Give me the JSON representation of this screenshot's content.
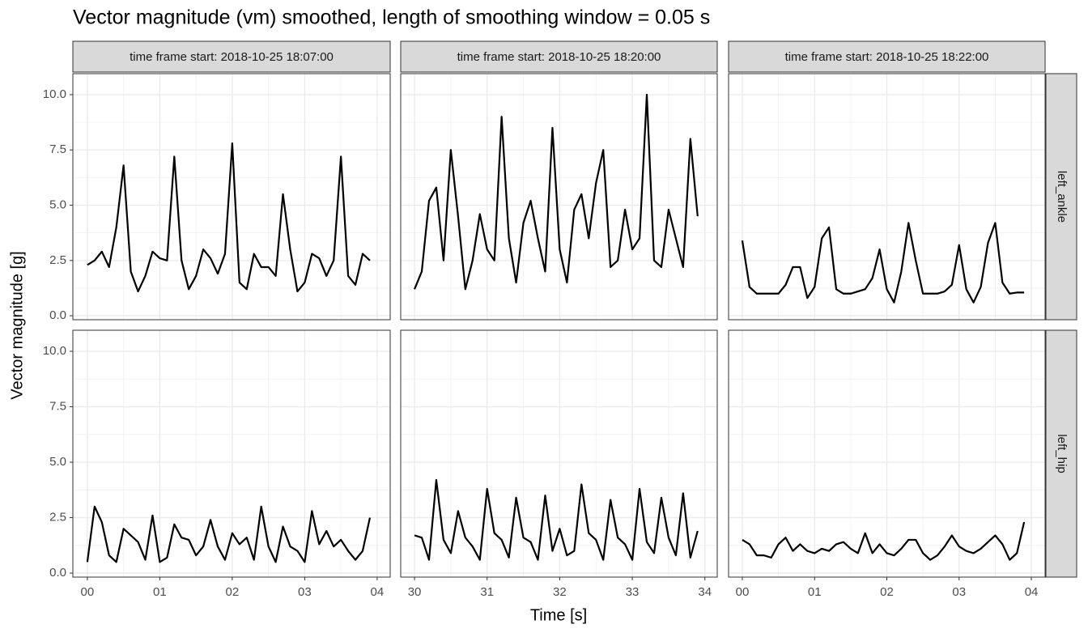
{
  "chart_data": {
    "type": "line",
    "title": "Vector magnitude (vm) smoothed, length of smoothing window = 0.05 s",
    "x_label": "Time [s]",
    "y_label": "Vector magnitude [g]",
    "color": "#000000",
    "grid": true,
    "ylim": [
      -0.18,
      10.95
    ],
    "yticks": [
      {
        "value": 0,
        "label": "0.0"
      },
      2.5,
      {
        "value": 5,
        "label": "5.0"
      },
      7.5,
      {
        "value": 10,
        "label": "10.0"
      }
    ],
    "columns": [
      {
        "label": "time frame start: 2018-10-25 18:07:00",
        "xlim": [
          -0.2,
          4.18
        ],
        "xticks": [
          {
            "value": 0,
            "label": "00"
          },
          {
            "value": 1,
            "label": "01"
          },
          {
            "value": 2,
            "label": "02"
          },
          {
            "value": 3,
            "label": "03"
          },
          {
            "value": 4,
            "label": "04"
          }
        ],
        "x": [
          0,
          0.1,
          0.2,
          0.3,
          0.4,
          0.5,
          0.6,
          0.7,
          0.8,
          0.9,
          1,
          1.1,
          1.2,
          1.3,
          1.4,
          1.5,
          1.6,
          1.7,
          1.8,
          1.9,
          2,
          2.1,
          2.2,
          2.3,
          2.4,
          2.5,
          2.6,
          2.7,
          2.8,
          2.9,
          3,
          3.1,
          3.2,
          3.3,
          3.4,
          3.5,
          3.6,
          3.7,
          3.8,
          3.9
        ]
      },
      {
        "label": "time frame start: 2018-10-25 18:20:00",
        "xlim": [
          29.81,
          34.17
        ],
        "xticks": [
          30,
          31,
          32,
          33,
          34
        ],
        "x": [
          30,
          30.1,
          30.2,
          30.3,
          30.4,
          30.5,
          30.6,
          30.7,
          30.8,
          30.9,
          31,
          31.1,
          31.2,
          31.3,
          31.4,
          31.5,
          31.6,
          31.7,
          31.8,
          31.9,
          32,
          32.1,
          32.2,
          32.3,
          32.4,
          32.5,
          32.6,
          32.7,
          32.8,
          32.9,
          33,
          33.1,
          33.2,
          33.3,
          33.4,
          33.5,
          33.6,
          33.7,
          33.8,
          33.9
        ]
      },
      {
        "label": "time frame start: 2018-10-25 18:22:00",
        "xlim": [
          -0.19,
          4.19
        ],
        "xticks": [
          {
            "value": 0,
            "label": "00"
          },
          {
            "value": 1,
            "label": "01"
          },
          {
            "value": 2,
            "label": "02"
          },
          {
            "value": 3,
            "label": "03"
          },
          {
            "value": 4,
            "label": "04"
          }
        ],
        "x": [
          0,
          0.1,
          0.2,
          0.3,
          0.4,
          0.5,
          0.6,
          0.7,
          0.8,
          0.9,
          1,
          1.1,
          1.2,
          1.3,
          1.4,
          1.5,
          1.6,
          1.7,
          1.8,
          1.9,
          2,
          2.1,
          2.2,
          2.3,
          2.4,
          2.5,
          2.6,
          2.7,
          2.8,
          2.9,
          3,
          3.1,
          3.2,
          3.3,
          3.4,
          3.5,
          3.6,
          3.7,
          3.8,
          3.9
        ]
      }
    ],
    "rows": [
      {
        "label": "left_ankle",
        "values": [
          [
            2.3,
            2.5,
            2.9,
            2.2,
            4.0,
            6.8,
            2.0,
            1.1,
            1.8,
            2.9,
            2.6,
            2.5,
            7.2,
            2.5,
            1.2,
            1.8,
            3.0,
            2.6,
            1.9,
            2.8,
            7.8,
            1.5,
            1.2,
            2.8,
            2.2,
            2.2,
            1.8,
            5.5,
            3.0,
            1.1,
            1.5,
            2.8,
            2.6,
            1.8,
            2.5,
            7.2,
            1.8,
            1.4,
            2.8,
            2.5
          ],
          [
            1.2,
            2.0,
            5.2,
            5.8,
            2.5,
            7.5,
            4.5,
            1.2,
            2.5,
            4.6,
            3.0,
            2.5,
            9.0,
            3.5,
            1.5,
            4.2,
            5.2,
            3.5,
            2.0,
            8.5,
            3.0,
            1.5,
            4.8,
            5.5,
            3.5,
            6.0,
            7.5,
            2.2,
            2.5,
            4.8,
            3.0,
            3.5,
            10.0,
            2.5,
            2.2,
            4.8,
            3.5,
            2.2,
            8.0,
            4.5
          ],
          [
            3.4,
            1.3,
            1.0,
            1.0,
            1.0,
            1.0,
            1.4,
            2.2,
            2.2,
            0.8,
            1.3,
            3.5,
            4.0,
            1.2,
            1.0,
            1.0,
            1.1,
            1.2,
            1.7,
            3.0,
            1.2,
            0.6,
            2.0,
            4.2,
            2.5,
            1.0,
            1.0,
            1.0,
            1.1,
            1.4,
            3.2,
            1.2,
            0.6,
            1.3,
            3.3,
            4.2,
            1.5,
            1.0,
            1.05,
            1.05
          ]
        ]
      },
      {
        "label": "left_hip",
        "values": [
          [
            0.5,
            3.0,
            2.3,
            0.8,
            0.5,
            2.0,
            1.7,
            1.4,
            0.6,
            2.6,
            0.5,
            0.7,
            2.2,
            1.6,
            1.5,
            0.8,
            1.2,
            2.4,
            1.2,
            0.6,
            1.8,
            1.3,
            1.6,
            0.6,
            3.0,
            1.2,
            0.5,
            2.1,
            1.2,
            1.0,
            0.5,
            2.8,
            1.3,
            1.9,
            1.2,
            1.5,
            1.0,
            0.6,
            1.0,
            2.5
          ],
          [
            1.7,
            1.6,
            0.6,
            4.2,
            1.5,
            0.9,
            2.8,
            1.6,
            1.2,
            0.6,
            3.8,
            1.8,
            1.5,
            0.7,
            3.4,
            1.6,
            1.4,
            0.6,
            3.5,
            1.0,
            2.0,
            0.8,
            1.0,
            4.0,
            1.8,
            1.5,
            0.6,
            3.3,
            1.6,
            1.3,
            0.6,
            3.8,
            1.4,
            0.9,
            3.4,
            1.6,
            0.8,
            3.6,
            0.7,
            1.9
          ],
          [
            1.5,
            1.3,
            0.8,
            0.8,
            0.7,
            1.3,
            1.6,
            1.0,
            1.3,
            1.0,
            0.9,
            1.1,
            1.0,
            1.3,
            1.4,
            1.1,
            0.9,
            1.8,
            0.9,
            1.3,
            0.9,
            0.8,
            1.1,
            1.5,
            1.5,
            0.9,
            0.6,
            0.8,
            1.2,
            1.7,
            1.2,
            1.0,
            0.9,
            1.1,
            1.4,
            1.7,
            1.3,
            0.6,
            0.9,
            2.3
          ]
        ]
      }
    ]
  }
}
